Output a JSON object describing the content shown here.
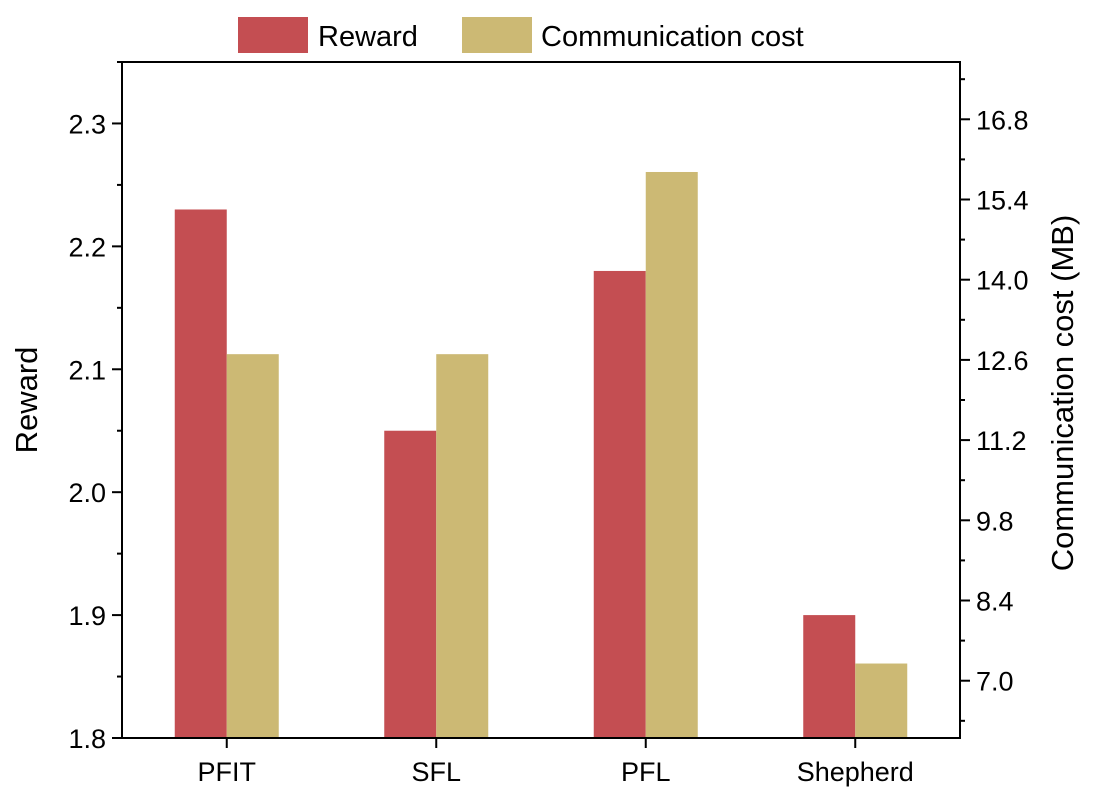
{
  "chart_data": {
    "type": "bar",
    "categories": [
      "PFIT",
      "SFL",
      "PFL",
      "Shepherd"
    ],
    "series": [
      {
        "name": "Reward",
        "axis": "left",
        "color": "#c44e52",
        "values": [
          2.23,
          2.05,
          2.18,
          1.9
        ]
      },
      {
        "name": "Communication cost",
        "axis": "right",
        "color": "#ccb974",
        "values": [
          12.7,
          12.7,
          15.88,
          7.3
        ]
      }
    ],
    "ylabel": "Reward",
    "y2label": "Communication cost (MB)",
    "ylim": [
      1.8,
      2.35
    ],
    "y2lim": [
      6.0,
      17.8
    ],
    "yticks": [
      "1.8",
      "1.9",
      "2.0",
      "2.1",
      "2.2",
      "2.3"
    ],
    "y2ticks": [
      "7.0",
      "8.4",
      "9.8",
      "11.2",
      "12.6",
      "14.0",
      "15.4",
      "16.8"
    ],
    "legend_position": "top",
    "grid": false
  }
}
